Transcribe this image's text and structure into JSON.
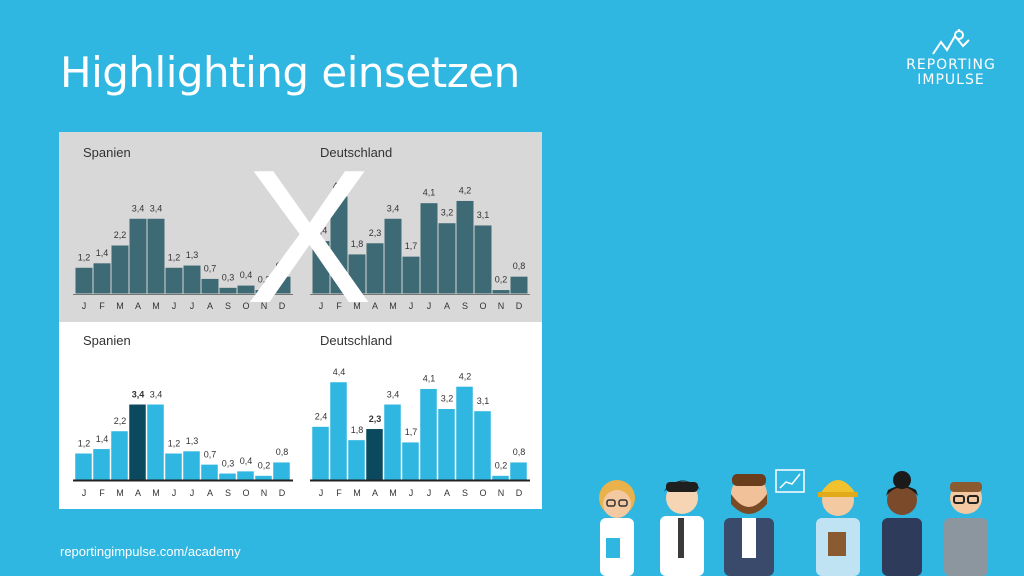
{
  "slide": {
    "title": "Highlighting einsetzen",
    "footer": "reportingimpulse.com/academy",
    "logo": {
      "line1": "REPORTING",
      "line2": "IMPULSE"
    },
    "cross_mark": "X"
  },
  "colors": {
    "background": "#2fb6e1",
    "bad_panel": "#d8d8d8",
    "bad_bar": "#3e6a75",
    "good_bar": "#2fb6e1",
    "highlight_bar": "#0b4a5e",
    "axis": "#222222"
  },
  "chart_data": [
    {
      "type": "bar",
      "panel": "top",
      "title": "Spanien",
      "categories": [
        "J",
        "F",
        "M",
        "A",
        "M",
        "J",
        "J",
        "A",
        "S",
        "O",
        "N",
        "D"
      ],
      "values": [
        1.2,
        1.4,
        2.2,
        3.4,
        3.4,
        1.2,
        1.3,
        0.7,
        0.3,
        0.4,
        0.2,
        0.8
      ],
      "labels": [
        "1,2",
        "1,4",
        "2,2",
        "3,4",
        "3,4",
        "1,2",
        "1,3",
        "0,7",
        "0,3",
        "0,4",
        "0,2",
        "0,8"
      ],
      "highlight_index": null
    },
    {
      "type": "bar",
      "panel": "top",
      "title": "Deutschland",
      "categories": [
        "J",
        "F",
        "M",
        "A",
        "M",
        "J",
        "J",
        "A",
        "S",
        "O",
        "N",
        "D"
      ],
      "values": [
        2.4,
        4.4,
        1.8,
        2.3,
        3.4,
        1.7,
        4.1,
        3.2,
        4.2,
        3.1,
        0.2,
        0.8
      ],
      "labels": [
        "2,4",
        "4,4",
        "1,8",
        "2,3",
        "3,4",
        "1,7",
        "4,1",
        "3,2",
        "4,2",
        "3,1",
        "0,2",
        "0,8"
      ],
      "highlight_index": null
    },
    {
      "type": "bar",
      "panel": "bottom",
      "title": "Spanien",
      "categories": [
        "J",
        "F",
        "M",
        "A",
        "M",
        "J",
        "J",
        "A",
        "S",
        "O",
        "N",
        "D"
      ],
      "values": [
        1.2,
        1.4,
        2.2,
        3.4,
        3.4,
        1.2,
        1.3,
        0.7,
        0.3,
        0.4,
        0.2,
        0.8
      ],
      "labels": [
        "1,2",
        "1,4",
        "2,2",
        "3,4",
        "3,4",
        "1,2",
        "1,3",
        "0,7",
        "0,3",
        "0,4",
        "0,2",
        "0,8"
      ],
      "highlight_index": 3
    },
    {
      "type": "bar",
      "panel": "bottom",
      "title": "Deutschland",
      "categories": [
        "J",
        "F",
        "M",
        "A",
        "M",
        "J",
        "J",
        "A",
        "S",
        "O",
        "N",
        "D"
      ],
      "values": [
        2.4,
        4.4,
        1.8,
        2.3,
        3.4,
        1.7,
        4.1,
        3.2,
        4.2,
        3.1,
        0.2,
        0.8
      ],
      "labels": [
        "2,4",
        "4,4",
        "1,8",
        "2,3",
        "3,4",
        "1,7",
        "4,1",
        "3,2",
        "4,2",
        "3,1",
        "0,2",
        "0,8"
      ],
      "highlight_index": 3
    }
  ]
}
